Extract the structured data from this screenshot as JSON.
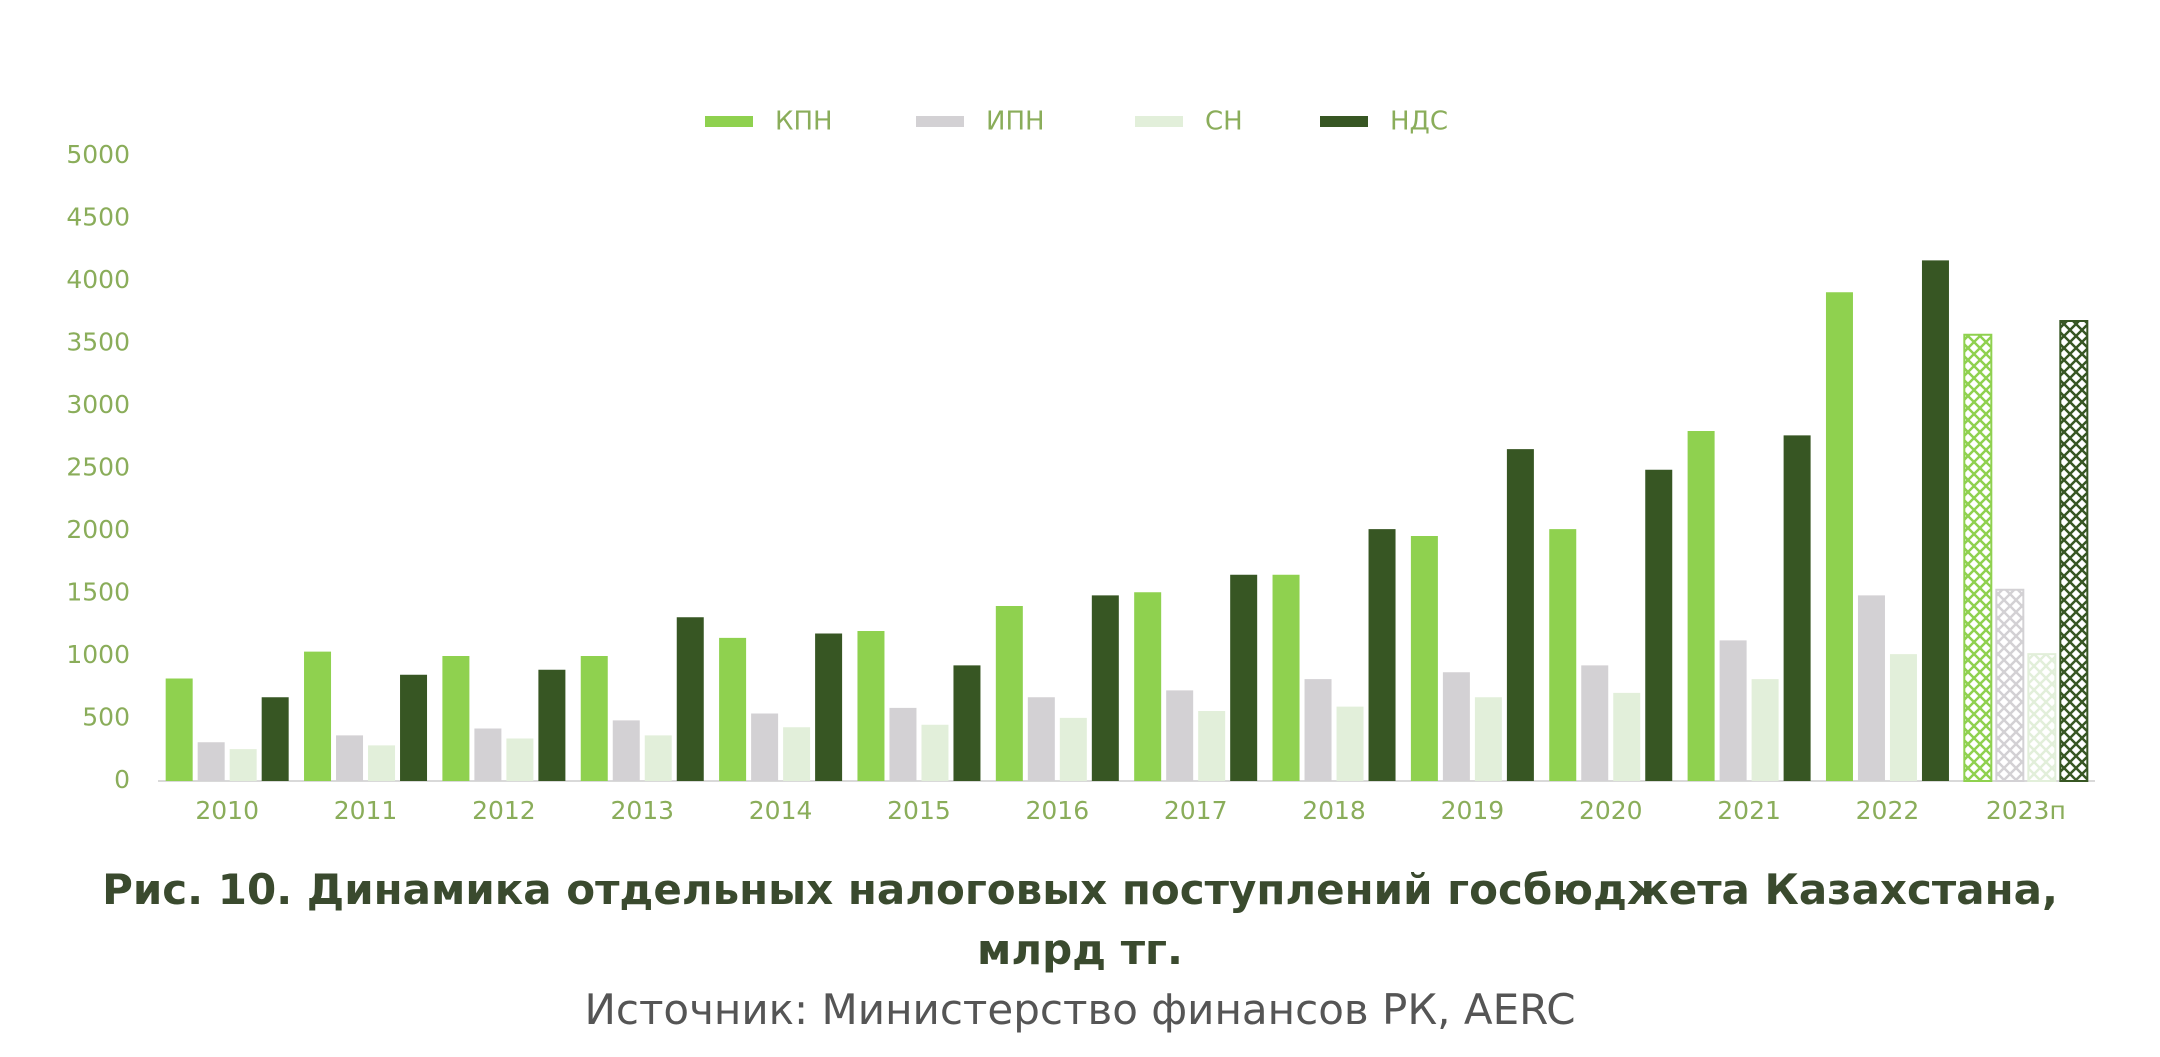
{
  "chart_data": {
    "type": "bar",
    "title": "Рис. 10. Динамика отдельных налоговых поступлений госбюджета Казахстана, млрд тг.",
    "source": "Источник: Министерство финансов РК, AERC",
    "categories": [
      "2010",
      "2011",
      "2012",
      "2013",
      "2014",
      "2015",
      "2016",
      "2017",
      "2018",
      "2019",
      "2020",
      "2021",
      "2022",
      "2023п"
    ],
    "series": [
      {
        "name": "КПН",
        "color": "#8fd14f",
        "values": [
          820,
          1035,
          1000,
          1000,
          1145,
          1200,
          1400,
          1510,
          1650,
          1960,
          2015,
          2800,
          3910,
          3570
        ]
      },
      {
        "name": "ИПН",
        "color": "#d3d1d4",
        "values": [
          310,
          365,
          420,
          485,
          540,
          585,
          670,
          725,
          815,
          870,
          925,
          1125,
          1485,
          1530
        ]
      },
      {
        "name": "СН",
        "color": "#e2efda",
        "values": [
          255,
          285,
          340,
          365,
          430,
          450,
          505,
          560,
          595,
          670,
          705,
          815,
          1015,
          1015
        ]
      },
      {
        "name": "НДС",
        "color": "#375623",
        "values": [
          670,
          850,
          890,
          1310,
          1180,
          925,
          1485,
          1650,
          2015,
          2655,
          2490,
          2765,
          4165,
          3680
        ]
      }
    ],
    "hatched": [
      13
    ],
    "ylim": [
      0,
      5000
    ],
    "yticks": [
      0,
      500,
      1000,
      1500,
      2000,
      2500,
      3000,
      3500,
      4000,
      4500,
      5000
    ],
    "grid": false,
    "legend": "top"
  }
}
